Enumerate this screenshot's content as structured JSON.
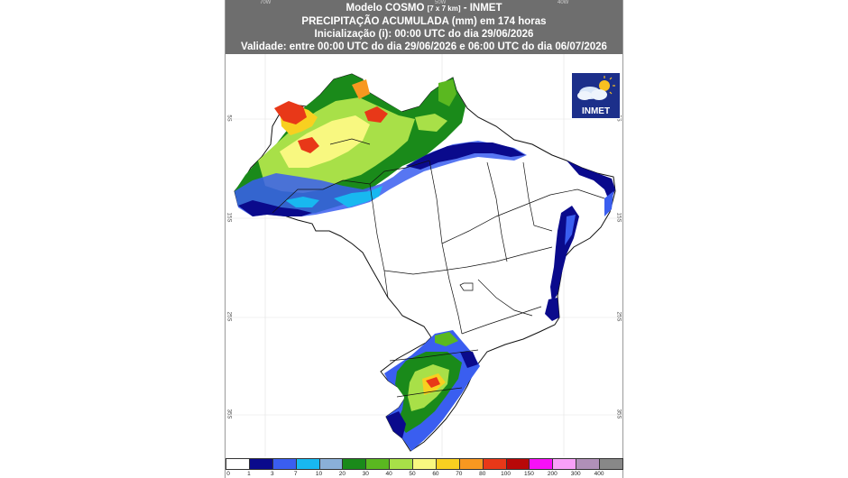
{
  "header": {
    "line1_a": "Modelo COSMO ",
    "line1_res": "[7 x 7 km]",
    "line1_b": " - INMET",
    "line2": "PRECIPITAÇÃO ACUMULADA (mm) em 174 horas",
    "line3": "Inicialização (i): 00:00 UTC do dia 29/06/2026",
    "line4": "Validade: entre 00:00 UTC do dia 29/06/2026 e 06:00 UTC do dia 06/07/2026"
  },
  "logo": {
    "text": "INMET",
    "icon": "cloud-sun-icon"
  },
  "graticule": {
    "lon_top": [
      "70W",
      "50W",
      "40W"
    ],
    "lat_left": [
      "5S",
      "15S",
      "25S",
      "35S"
    ],
    "lat_right": [
      "5S",
      "15S",
      "25S",
      "35S"
    ]
  },
  "legend": {
    "labels": [
      "0",
      "1",
      "3",
      "7",
      "10",
      "20",
      "30",
      "40",
      "50",
      "60",
      "70",
      "80",
      "100",
      "150",
      "200",
      "300",
      "400"
    ],
    "colors": [
      "#ffffff",
      "#0a0a8c",
      "#3a5ef0",
      "#18b8f0",
      "#8ab0d8",
      "#1a8a1a",
      "#5ab820",
      "#a8e048",
      "#f8f880",
      "#f8d020",
      "#f89820",
      "#e83818",
      "#b80808",
      "#f810f8",
      "#f8a0f8",
      "#b090b8",
      "#888888"
    ]
  }
}
